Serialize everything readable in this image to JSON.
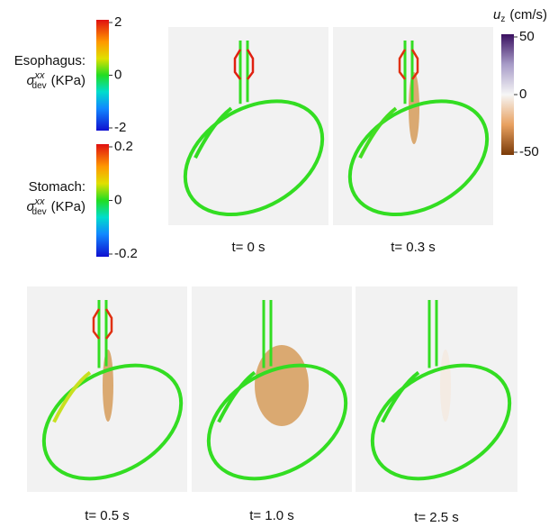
{
  "colorbars": {
    "esophagus": {
      "name": "Esophagus:",
      "symbol": "σ",
      "sup": "xx",
      "sub": "dev",
      "unit": "(KPa)",
      "ticks": [
        "2",
        "0",
        "-2"
      ]
    },
    "stomach": {
      "name": "Stomach:",
      "symbol": "σ",
      "sup": "xx",
      "sub": "dev",
      "unit": "(KPa)",
      "ticks": [
        "0.2",
        "0",
        "-0.2"
      ]
    },
    "velocity": {
      "symbol": "u",
      "sub": "z",
      "unit": "(cm/s)",
      "ticks": [
        "50",
        "0",
        "-50"
      ]
    }
  },
  "panels": [
    {
      "label": "t= 0 s"
    },
    {
      "label": "t= 0.3 s"
    },
    {
      "label": "t= 0.5 s"
    },
    {
      "label": "t= 1.0 s"
    },
    {
      "label": "t= 2.5 s"
    }
  ]
}
